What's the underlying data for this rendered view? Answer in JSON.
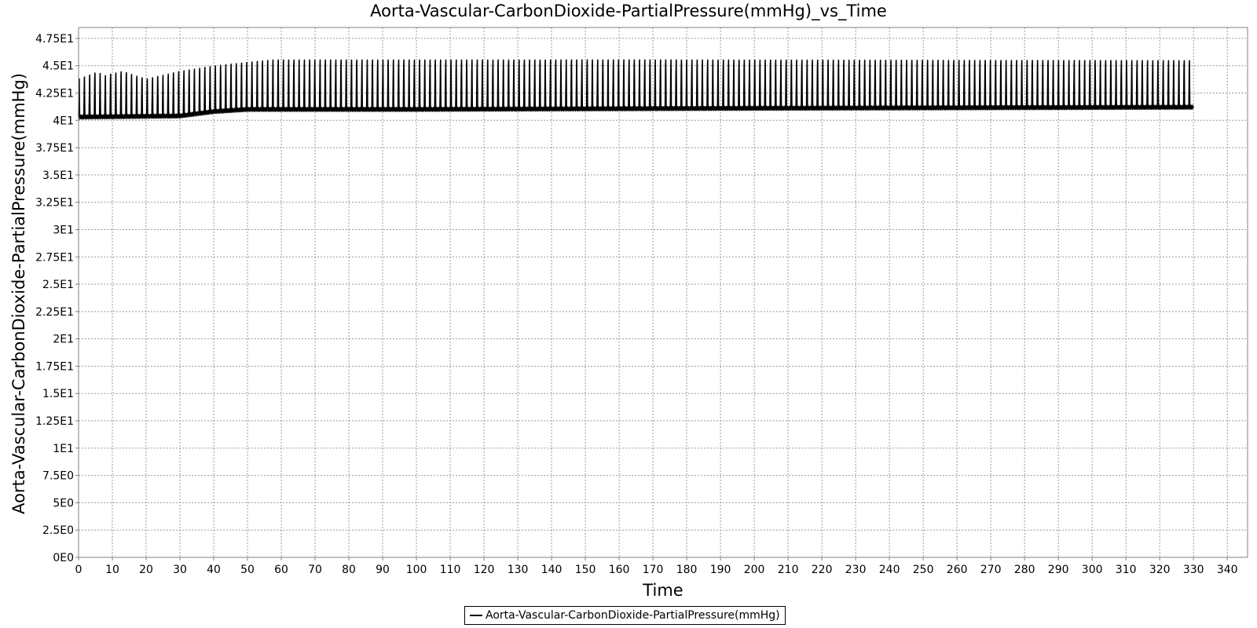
{
  "chart_data": {
    "type": "line",
    "title": "Aorta-Vascular-CarbonDioxide-PartialPressure(mmHg)_vs_Time",
    "xlabel": "Time",
    "ylabel": "Aorta-Vascular-CarbonDioxide-PartialPressure(mmHg)",
    "xlim": [
      0,
      346
    ],
    "ylim": [
      0,
      48.5
    ],
    "grid": true,
    "legend_position": "bottom-center",
    "x_ticks": [
      0,
      10,
      20,
      30,
      40,
      50,
      60,
      70,
      80,
      90,
      100,
      110,
      120,
      130,
      140,
      150,
      160,
      170,
      180,
      190,
      200,
      210,
      220,
      230,
      240,
      250,
      260,
      270,
      280,
      290,
      300,
      310,
      320,
      330,
      340
    ],
    "y_ticks": [
      {
        "value": 0,
        "label": "0E0"
      },
      {
        "value": 2.5,
        "label": "2.5E0"
      },
      {
        "value": 5,
        "label": "5E0"
      },
      {
        "value": 7.5,
        "label": "7.5E0"
      },
      {
        "value": 10,
        "label": "1E1"
      },
      {
        "value": 12.5,
        "label": "1.25E1"
      },
      {
        "value": 15,
        "label": "1.5E1"
      },
      {
        "value": 17.5,
        "label": "1.75E1"
      },
      {
        "value": 20,
        "label": "2E1"
      },
      {
        "value": 22.5,
        "label": "2.25E1"
      },
      {
        "value": 25,
        "label": "2.5E1"
      },
      {
        "value": 27.5,
        "label": "2.75E1"
      },
      {
        "value": 30,
        "label": "3E1"
      },
      {
        "value": 32.5,
        "label": "3.25E1"
      },
      {
        "value": 35,
        "label": "3.5E1"
      },
      {
        "value": 37.5,
        "label": "3.75E1"
      },
      {
        "value": 40,
        "label": "4E1"
      },
      {
        "value": 42.5,
        "label": "4.25E1"
      },
      {
        "value": 45,
        "label": "4.5E1"
      },
      {
        "value": 47.5,
        "label": "4.75E1"
      }
    ],
    "series": [
      {
        "name": "Aorta-Vascular-CarbonDioxide-PartialPressure(mmHg)",
        "color": "#000000",
        "x_range": [
          0,
          330
        ],
        "breath_period": 1.55,
        "baseline": [
          [
            0,
            40.3
          ],
          [
            30,
            40.4
          ],
          [
            40,
            40.8
          ],
          [
            50,
            41.0
          ],
          [
            100,
            41.0
          ],
          [
            200,
            41.1
          ],
          [
            330,
            41.2
          ]
        ],
        "peaks": [
          [
            0,
            44.2
          ],
          [
            6,
            45.0
          ],
          [
            7,
            44.5
          ],
          [
            13,
            45.0
          ],
          [
            20,
            44.2
          ],
          [
            30,
            45.0
          ],
          [
            40,
            45.5
          ],
          [
            57,
            46.1
          ],
          [
            100,
            46.1
          ],
          [
            110,
            46.1
          ],
          [
            170,
            46.1
          ],
          [
            330,
            46.0
          ]
        ]
      }
    ]
  },
  "legend": {
    "label": "Aorta-Vascular-CarbonDioxide-PartialPressure(mmHg)"
  }
}
